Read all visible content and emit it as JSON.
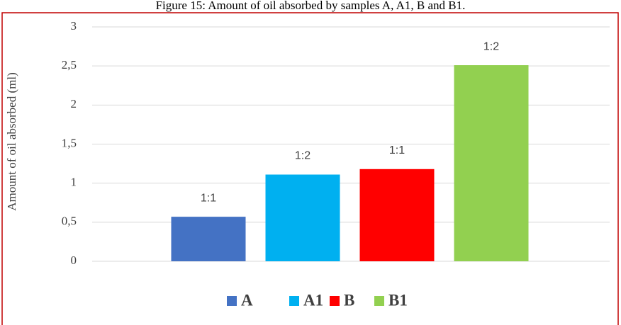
{
  "chart_data": {
    "type": "bar",
    "title": "Figure 15: Amount of oil absorbed by samples A, A1, B and B1.",
    "y_label": "Amount of oil absorbed (ml)",
    "series": [
      {
        "name": "A",
        "color": "#4472c4",
        "values": [
          0.57
        ],
        "data_label": "1:1"
      },
      {
        "name": "A1",
        "color": "#00b0f0",
        "values": [
          1.11
        ],
        "data_label": "1:2"
      },
      {
        "name": "B",
        "color": "#ff0000",
        "values": [
          1.18
        ],
        "data_label": "1:1"
      },
      {
        "name": "B1",
        "color": "#92d050",
        "values": [
          2.51
        ],
        "data_label": "1:2"
      }
    ],
    "ylim": [
      0,
      3
    ],
    "yticks": [
      0,
      {
        "value": 0.5,
        "label": "0,5"
      },
      1,
      {
        "value": 1.5,
        "label": "1,5"
      },
      2,
      {
        "value": 2.5,
        "label": "2,5"
      },
      3
    ],
    "grid": true,
    "legend": "bottom"
  }
}
